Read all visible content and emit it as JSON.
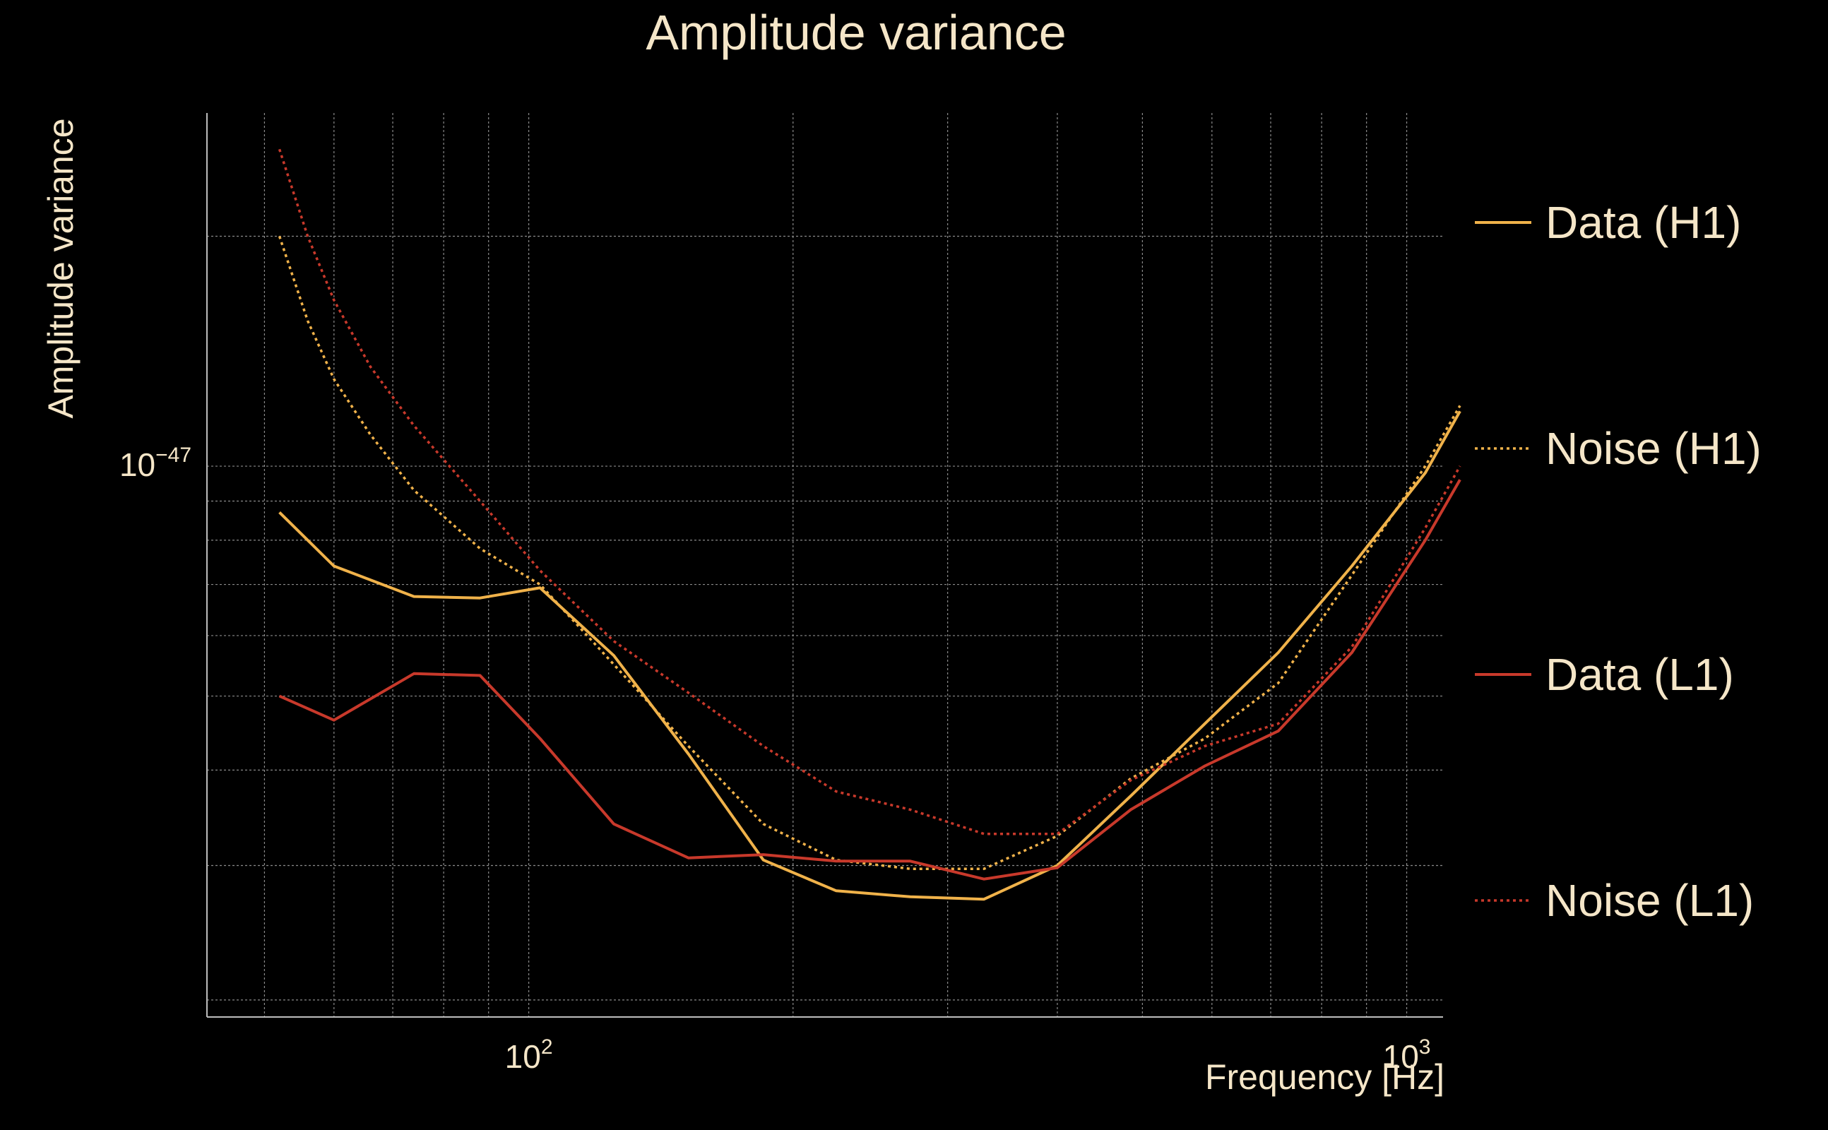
{
  "chart_data": {
    "type": "line",
    "title": "Amplitude variance",
    "xlabel": "Frequency [Hz]",
    "ylabel": "Amplitude variance",
    "xscale": "log",
    "yscale": "log",
    "xlim": [
      43,
      1100
    ],
    "ylim": [
      1.9e-48,
      2.9e-47
    ],
    "x_ticks": [
      {
        "value": 100,
        "base": "10",
        "exp": "2"
      },
      {
        "value": 1000,
        "base": "10",
        "exp": "3"
      }
    ],
    "y_ticks": [
      {
        "value": 1e-47,
        "base": "10",
        "exp": "−47"
      }
    ],
    "grid": true,
    "legend_position": "right",
    "background": "#000000",
    "grid_color": "#8a8a8a",
    "text_color": "#f5e6c8",
    "series": [
      {
        "name": "Data (H1)",
        "color": "#f0b24a",
        "style": "solid",
        "x": [
          52,
          60,
          74,
          88,
          103,
          125,
          152,
          185,
          224,
          272,
          330,
          400,
          485,
          589,
          714,
          866,
          1050,
          1150
        ],
        "y": [
          8.7e-48,
          7.4e-48,
          6.75e-48,
          6.72e-48,
          6.93e-48,
          5.65e-48,
          4.2e-48,
          3.05e-48,
          2.78e-48,
          2.73e-48,
          2.71e-48,
          3e-48,
          3.7e-48,
          4.6e-48,
          5.7e-48,
          7.4e-48,
          9.8e-48,
          1.18e-47
        ]
      },
      {
        "name": "Noise (H1)",
        "color": "#f0b24a",
        "style": "dotted",
        "x": [
          52,
          56,
          60,
          66,
          74,
          88,
          103,
          125,
          152,
          185,
          224,
          272,
          330,
          400,
          485,
          589,
          714,
          866,
          1050,
          1150
        ],
        "y": [
          2e-47,
          1.55e-47,
          1.3e-47,
          1.1e-47,
          9.3e-48,
          7.8e-48,
          7e-48,
          5.5e-48,
          4.3e-48,
          3.4e-48,
          3.05e-48,
          2.97e-48,
          2.97e-48,
          3.28e-48,
          3.9e-48,
          4.4e-48,
          5.2e-48,
          7.2e-48,
          1e-47,
          1.2e-47
        ]
      },
      {
        "name": "Data (L1)",
        "color": "#c8392b",
        "style": "solid",
        "x": [
          52,
          60,
          74,
          88,
          103,
          125,
          152,
          185,
          224,
          272,
          330,
          400,
          485,
          589,
          714,
          866,
          1050,
          1150
        ],
        "y": [
          5e-48,
          4.65e-48,
          5.35e-48,
          5.32e-48,
          4.4e-48,
          3.4e-48,
          3.07e-48,
          3.1e-48,
          3.04e-48,
          3.04e-48,
          2.88e-48,
          2.98e-48,
          3.55e-48,
          4.05e-48,
          4.5e-48,
          5.7e-48,
          8e-48,
          9.6e-48
        ]
      },
      {
        "name": "Noise (L1)",
        "color": "#c8392b",
        "style": "dotted",
        "x": [
          52,
          56,
          60,
          66,
          74,
          88,
          103,
          125,
          152,
          185,
          224,
          272,
          330,
          400,
          485,
          589,
          714,
          866,
          1050,
          1150
        ],
        "y": [
          2.6e-47,
          2e-47,
          1.65e-47,
          1.35e-47,
          1.13e-47,
          9e-48,
          7.3e-48,
          5.9e-48,
          5.05e-48,
          4.3e-48,
          3.75e-48,
          3.55e-48,
          3.3e-48,
          3.3e-48,
          3.88e-48,
          4.3e-48,
          4.6e-48,
          5.8e-48,
          8.3e-48,
          1e-47
        ]
      }
    ]
  }
}
